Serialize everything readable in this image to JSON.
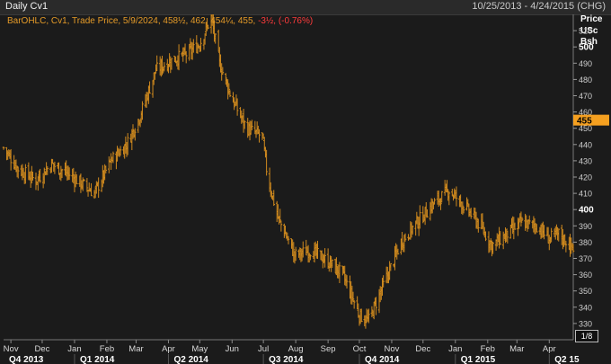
{
  "window": {
    "title": "Daily Cv1",
    "date_range": "10/25/2013 - 4/24/2015 (CHG)"
  },
  "legend": {
    "label": "BarOHLC, Cv1, Trade Price, 5/9/2024, 458½, 462, 454¼, 455,",
    "change": "-3½, (-0.76%)"
  },
  "axis_units": {
    "line1": "Price",
    "line2": "USc",
    "line3": "Bsh"
  },
  "fraction_button": "1/8",
  "colors": {
    "bars": "#d08a1e",
    "background": "#1b1b1b",
    "grid": "#3a3a3a",
    "last_price_tag": "#f5a020"
  },
  "chart_data": {
    "type": "bar_ohlc",
    "title": "Daily Cv1",
    "ylim": [
      320,
      520
    ],
    "y_ticks": [
      330,
      340,
      350,
      360,
      370,
      380,
      390,
      400,
      410,
      420,
      430,
      440,
      450,
      460,
      470,
      480,
      490,
      500,
      510
    ],
    "y_major_ticks": [
      400,
      500
    ],
    "last_price": 455,
    "months": [
      "Nov",
      "Dec",
      "Jan",
      "Feb",
      "Mar",
      "Apr",
      "May",
      "Jun",
      "Jul",
      "Aug",
      "Sep",
      "Oct",
      "Nov",
      "Dec",
      "Jan",
      "Feb",
      "Mar",
      "Apr"
    ],
    "quarters": [
      "Q4 2013",
      "Q1 2014",
      "Q2 2014",
      "Q3 2014",
      "Q4 2014",
      "Q1 2015",
      "Q2 15"
    ],
    "series": [
      {
        "name": "Cv1",
        "x": [
          "2013-10-25",
          "2013-11-08",
          "2013-11-25",
          "2013-12-10",
          "2013-12-26",
          "2014-01-10",
          "2014-01-20",
          "2014-02-05",
          "2014-02-20",
          "2014-03-05",
          "2014-03-20",
          "2014-04-05",
          "2014-04-20",
          "2014-05-01",
          "2014-05-12",
          "2014-05-20",
          "2014-06-01",
          "2014-06-15",
          "2014-06-30",
          "2014-07-05",
          "2014-07-15",
          "2014-07-31",
          "2014-08-15",
          "2014-09-01",
          "2014-09-15",
          "2014-09-25",
          "2014-10-01",
          "2014-10-10",
          "2014-10-25",
          "2014-11-10",
          "2014-11-25",
          "2014-12-10",
          "2014-12-26",
          "2015-01-10",
          "2015-01-25",
          "2015-02-05",
          "2015-02-20",
          "2015-03-05",
          "2015-03-20",
          "2015-04-01",
          "2015-04-10",
          "2015-04-24"
        ],
        "close": [
          438,
          425,
          418,
          428,
          422,
          415,
          410,
          430,
          440,
          458,
          486,
          492,
          496,
          502,
          518,
          490,
          468,
          450,
          445,
          420,
          395,
          372,
          375,
          368,
          360,
          345,
          335,
          332,
          355,
          380,
          392,
          403,
          412,
          402,
          390,
          378,
          385,
          392,
          390,
          382,
          385,
          376
        ]
      }
    ]
  }
}
